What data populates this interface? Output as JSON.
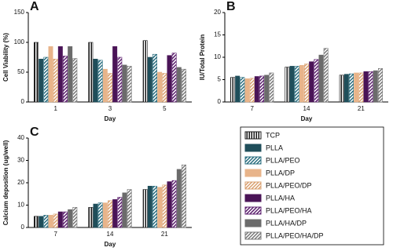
{
  "chart_data": [
    {
      "type": "bar",
      "panel": "A",
      "y_label": "Cell Viability (%)",
      "x_label": "Day",
      "categories": [
        "1",
        "3",
        "5"
      ],
      "ylim": [
        0,
        150
      ],
      "yticks": [
        0,
        50,
        100,
        150
      ],
      "series": [
        {
          "name": "TCP",
          "color": "#1a1a1a",
          "pattern": "vstripe",
          "values": [
            100,
            100,
            103
          ]
        },
        {
          "name": "PLLA",
          "color": "#1f4e5a",
          "pattern": "solid",
          "values": [
            72,
            72,
            75
          ]
        },
        {
          "name": "PLLA/PEO",
          "color": "#2b6f80",
          "pattern": "hatch",
          "values": [
            75,
            70,
            80
          ]
        },
        {
          "name": "PLLA/DP",
          "color": "#e8b48a",
          "pattern": "solid",
          "values": [
            93,
            55,
            50
          ]
        },
        {
          "name": "PLLA/PEO/DP",
          "color": "#d9a070",
          "pattern": "hatch",
          "values": [
            72,
            48,
            48
          ]
        },
        {
          "name": "PLLA/HA",
          "color": "#4a1457",
          "pattern": "solid",
          "values": [
            93,
            93,
            78
          ]
        },
        {
          "name": "PLLA/PEO/HA",
          "color": "#5e2270",
          "pattern": "hatch",
          "values": [
            77,
            75,
            82
          ]
        },
        {
          "name": "PLLA/HA/DP",
          "color": "#6b6b6b",
          "pattern": "solid",
          "values": [
            93,
            62,
            58
          ]
        },
        {
          "name": "PLLA/PEO/HA/DP",
          "color": "#7a7a7a",
          "pattern": "hatch",
          "values": [
            73,
            60,
            55
          ]
        }
      ]
    },
    {
      "type": "bar",
      "panel": "B",
      "y_label": "IU/Total Protein",
      "x_label": "Day",
      "categories": [
        "7",
        "14",
        "21"
      ],
      "ylim": [
        0,
        20
      ],
      "yticks": [
        0,
        5,
        10,
        15,
        20
      ],
      "series": [
        {
          "values": [
            5.5,
            7.8,
            6
          ]
        },
        {
          "values": [
            5.8,
            8,
            6.2
          ]
        },
        {
          "values": [
            5.5,
            8,
            6.3
          ]
        },
        {
          "values": [
            5.2,
            8.2,
            6.5
          ]
        },
        {
          "values": [
            5.3,
            8.5,
            6.5
          ]
        },
        {
          "values": [
            5.7,
            9,
            6.8
          ]
        },
        {
          "values": [
            5.8,
            9.5,
            6.8
          ]
        },
        {
          "values": [
            6,
            10.5,
            7
          ]
        },
        {
          "values": [
            6.5,
            12,
            7.5
          ]
        }
      ]
    },
    {
      "type": "bar",
      "panel": "C",
      "y_label": "Calcium deposition (ug/well)",
      "x_label": "Day",
      "categories": [
        "7",
        "14",
        "21"
      ],
      "ylim": [
        0,
        40
      ],
      "yticks": [
        0,
        10,
        20,
        30,
        40
      ],
      "series": [
        {
          "values": [
            5,
            9,
            17
          ]
        },
        {
          "values": [
            5,
            10.5,
            18.5
          ]
        },
        {
          "values": [
            5.5,
            11,
            18.5
          ]
        },
        {
          "values": [
            5.5,
            11,
            18
          ]
        },
        {
          "values": [
            6,
            12,
            19
          ]
        },
        {
          "values": [
            7,
            12.5,
            20.5
          ]
        },
        {
          "values": [
            7,
            13.5,
            21
          ]
        },
        {
          "values": [
            8,
            15.5,
            26
          ]
        },
        {
          "values": [
            9,
            17,
            28
          ]
        }
      ]
    }
  ]
}
